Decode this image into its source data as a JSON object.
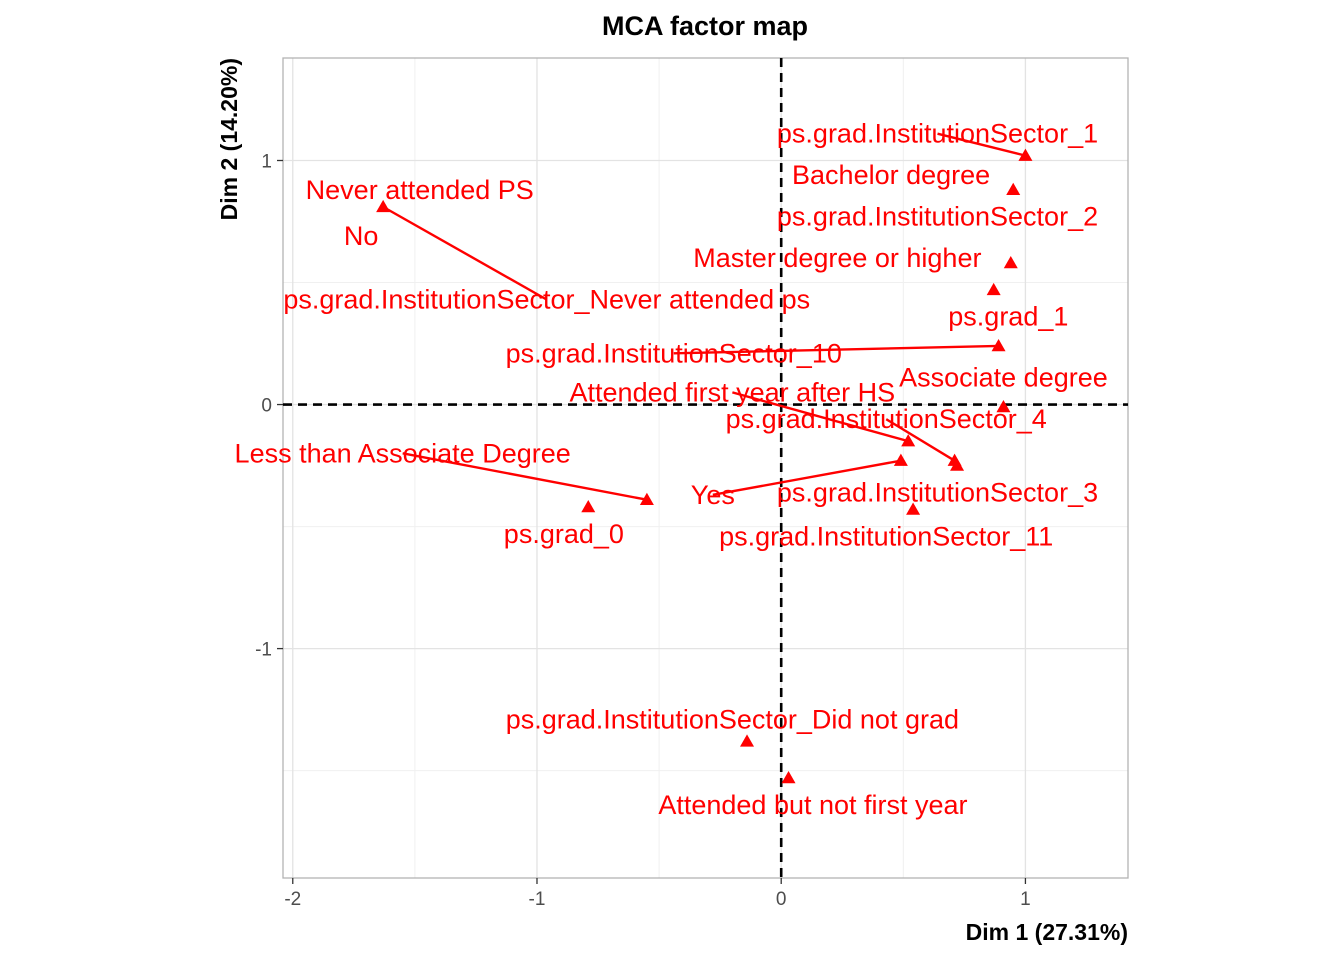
{
  "chart_data": {
    "type": "scatter",
    "title": "MCA factor map",
    "xlabel": "Dim 1 (27.31%)",
    "ylabel": "Dim 2 (14.20%)",
    "xlim": [
      -2.04,
      1.42
    ],
    "ylim": [
      -1.94,
      1.42
    ],
    "x_ticks": [
      -2,
      -1,
      0,
      1
    ],
    "y_ticks": [
      -1,
      0,
      1
    ],
    "x_tick_labels": [
      "-2",
      "-1",
      "0",
      "1"
    ],
    "y_tick_labels": [
      "-1",
      "0",
      "1"
    ],
    "grid": true,
    "reference_lines": {
      "x": 0,
      "y": 0,
      "style": "dashed"
    },
    "marker": "triangle",
    "color": "#ff0000",
    "points": [
      {
        "label": "ps.grad.InstitutionSector_1",
        "x": 1.0,
        "y": 1.02,
        "lx": 0.64,
        "ly": 1.11,
        "leader": true
      },
      {
        "label": "Bachelor degree",
        "x": 0.95,
        "y": 0.88,
        "lx": 0.45,
        "ly": 0.94,
        "leader": false
      },
      {
        "label": "ps.grad.InstitutionSector_2",
        "x": 0.95,
        "y": 0.88,
        "lx": 0.64,
        "ly": 0.77,
        "leader": false
      },
      {
        "label": "Master degree or higher",
        "x": 0.94,
        "y": 0.58,
        "lx": 0.23,
        "ly": 0.6,
        "leader": false
      },
      {
        "label": "ps.grad_1",
        "x": 0.87,
        "y": 0.47,
        "lx": 0.93,
        "ly": 0.36,
        "leader": false
      },
      {
        "label": "ps.grad.InstitutionSector_10",
        "x": 0.89,
        "y": 0.24,
        "lx": -0.44,
        "ly": 0.21,
        "leader": true
      },
      {
        "label": "Associate degree",
        "x": 0.91,
        "y": -0.01,
        "lx": 0.91,
        "ly": 0.11,
        "leader": false
      },
      {
        "label": "Attended first year after HS",
        "x": 0.52,
        "y": -0.15,
        "lx": -0.2,
        "ly": 0.05,
        "leader": true
      },
      {
        "label": "ps.grad.InstitutionSector_4",
        "x": 0.71,
        "y": -0.23,
        "lx": 0.43,
        "ly": -0.06,
        "leader": true
      },
      {
        "label": "ps.grad.InstitutionSector_3",
        "x": 0.72,
        "y": -0.25,
        "lx": 0.64,
        "ly": -0.36,
        "leader": false
      },
      {
        "label": "Yes",
        "x": 0.49,
        "y": -0.23,
        "lx": -0.28,
        "ly": -0.37,
        "leader": true
      },
      {
        "label": "ps.grad.InstitutionSector_11",
        "x": 0.54,
        "y": -0.43,
        "lx": 0.43,
        "ly": -0.54,
        "leader": false
      },
      {
        "label": "Less than Associate Degree",
        "x": -0.55,
        "y": -0.39,
        "lx": -1.55,
        "ly": -0.2,
        "leader": true
      },
      {
        "label": "ps.grad_0",
        "x": -0.79,
        "y": -0.42,
        "lx": -0.89,
        "ly": -0.53,
        "leader": false
      },
      {
        "label": "Never attended PS",
        "x": -1.63,
        "y": 0.81,
        "lx": -1.48,
        "ly": 0.88,
        "leader": false
      },
      {
        "label": "No",
        "x": -1.63,
        "y": 0.81,
        "lx": -1.72,
        "ly": 0.69,
        "leader": false
      },
      {
        "label": "ps.grad.InstitutionSector_Never attended ps",
        "x": -1.63,
        "y": 0.81,
        "lx": -0.96,
        "ly": 0.43,
        "leader": true
      },
      {
        "label": "ps.grad.InstitutionSector_Did not grad",
        "x": -0.14,
        "y": -1.38,
        "lx": -0.2,
        "ly": -1.29,
        "leader": false
      },
      {
        "label": "Attended but not first year",
        "x": 0.03,
        "y": -1.53,
        "lx": 0.13,
        "ly": -1.64,
        "leader": false
      }
    ]
  }
}
